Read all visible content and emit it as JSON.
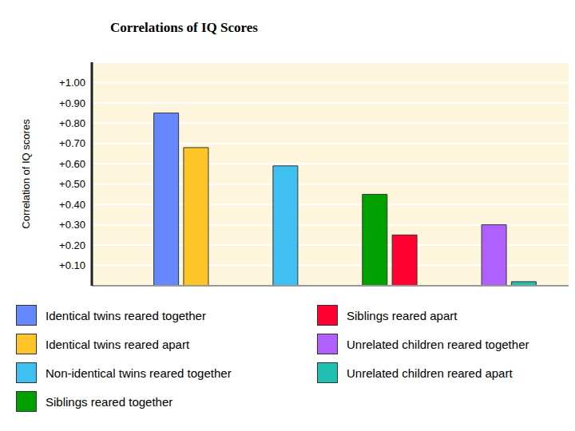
{
  "chart_data": {
    "type": "bar",
    "title": "Correlations of IQ Scores",
    "y_label": "Correlation of IQ scores",
    "categories": [
      null,
      null,
      null,
      null,
      null,
      null,
      null,
      null,
      null,
      null,
      null,
      null,
      null,
      null,
      null,
      null
    ],
    "series": [
      {
        "name": "Identical twins reared together",
        "color": "#6688ff",
        "values": [
          null,
          null,
          0.85,
          null,
          null,
          null,
          null,
          null,
          null,
          null,
          null,
          null,
          null,
          null,
          null,
          null
        ]
      },
      {
        "name": "Identical twins reared apart",
        "color": "#ffc425",
        "values": [
          null,
          null,
          null,
          0.68,
          null,
          null,
          null,
          null,
          null,
          null,
          null,
          null,
          null,
          null,
          null,
          null
        ]
      },
      {
        "name": "Non-identical twins reared together",
        "color": "#40c0f0",
        "values": [
          null,
          null,
          null,
          null,
          null,
          null,
          0.59,
          null,
          null,
          null,
          null,
          null,
          null,
          null,
          null,
          null
        ]
      },
      {
        "name": "Siblings reared together",
        "color": "#00a000",
        "values": [
          null,
          null,
          null,
          null,
          null,
          null,
          null,
          null,
          null,
          0.45,
          null,
          null,
          null,
          null,
          null,
          null
        ]
      },
      {
        "name": "Siblings reared apart",
        "color": "#ff0030",
        "values": [
          null,
          null,
          null,
          null,
          null,
          null,
          null,
          null,
          null,
          null,
          0.25,
          null,
          null,
          null,
          null,
          null
        ]
      },
      {
        "name": "Unrelated children reared together",
        "color": "#b060ff",
        "values": [
          null,
          null,
          null,
          null,
          null,
          null,
          null,
          null,
          null,
          null,
          null,
          null,
          null,
          0.3,
          null,
          null
        ]
      },
      {
        "name": "Unrelated children reared apart",
        "color": "#20c0b0",
        "values": [
          null,
          null,
          null,
          null,
          null,
          null,
          null,
          null,
          null,
          null,
          null,
          null,
          null,
          null,
          0.02,
          null
        ]
      }
    ],
    "ylim": [
      0,
      1.1
    ],
    "yticks": [
      {
        "value": 0.1,
        "label": "+0.10"
      },
      {
        "value": 0.2,
        "label": "+0.20"
      },
      {
        "value": 0.3,
        "label": "+0.30"
      },
      {
        "value": 0.4,
        "label": "+0.40"
      },
      {
        "value": 0.5,
        "label": "+0.50"
      },
      {
        "value": 0.6,
        "label": "+0.60"
      },
      {
        "value": 0.7,
        "label": "+0.70"
      },
      {
        "value": 0.8,
        "label": "+0.80"
      },
      {
        "value": 0.9,
        "label": "+0.90"
      },
      {
        "value": 1.0,
        "label": "+1.00"
      }
    ],
    "grid": true,
    "legend": "bottom",
    "tick_labels": "y"
  }
}
